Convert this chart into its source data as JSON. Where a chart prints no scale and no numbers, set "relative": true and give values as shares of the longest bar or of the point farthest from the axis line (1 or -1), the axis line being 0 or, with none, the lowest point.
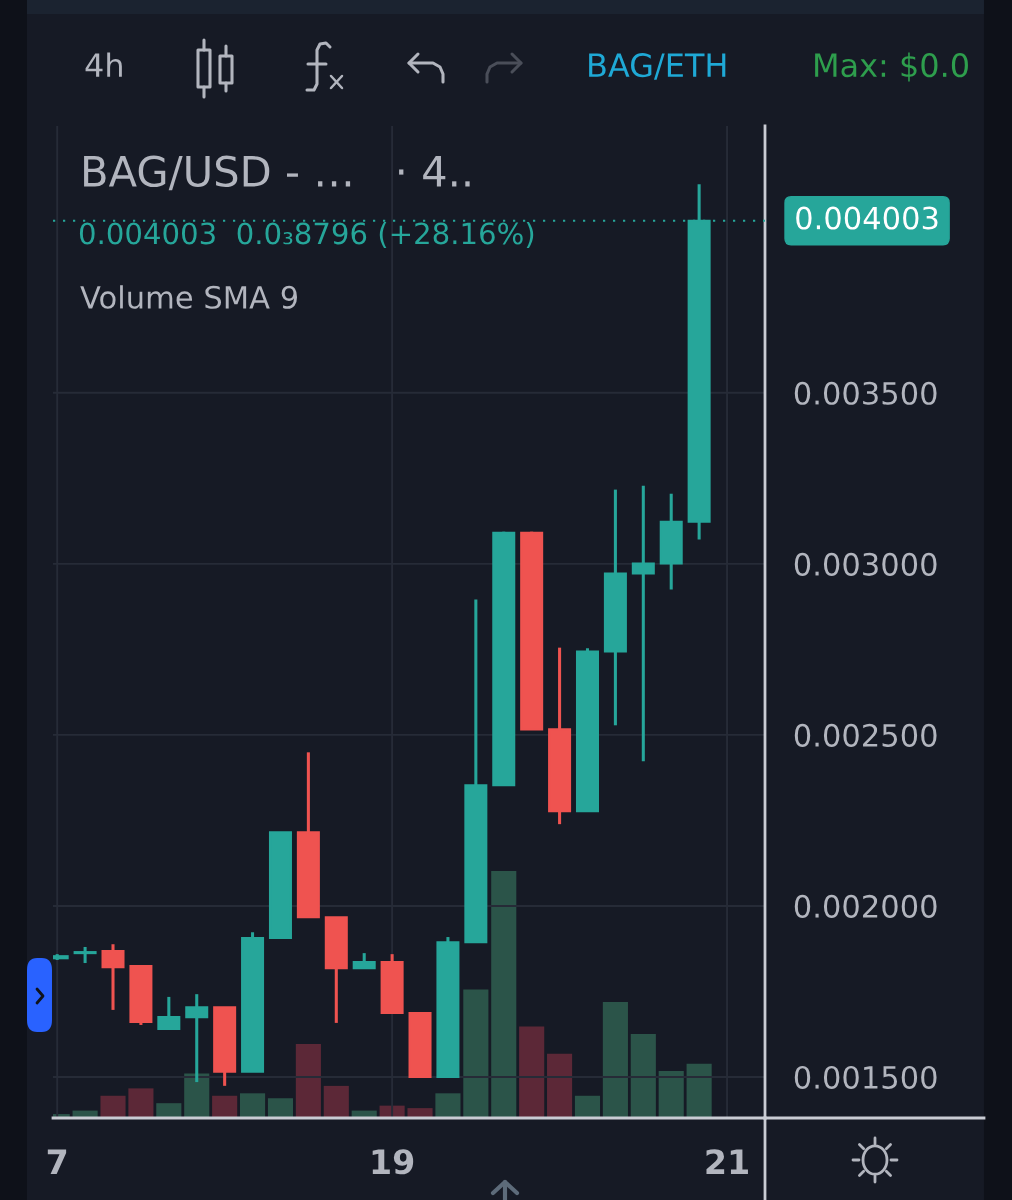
{
  "chart_data": [
    {
      "type": "candlestick",
      "title": "BAG/USD - …   · 4..",
      "subtitle": "0.004003  0.0₃8796 (+28.16%)",
      "categories": [
        "7",
        null,
        null,
        null,
        null,
        null,
        null,
        null,
        null,
        null,
        null,
        null,
        "19",
        null,
        null,
        null,
        null,
        null,
        null,
        null,
        null,
        null,
        null,
        null,
        "21"
      ],
      "ohlc": [
        [
          0.001847,
          0.001859,
          0.001842,
          0.001853
        ],
        [
          0.001862,
          0.00188,
          0.001833,
          0.001865
        ],
        [
          0.001868,
          0.001888,
          0.001696,
          0.001821
        ],
        [
          0.001824,
          0.001824,
          0.001652,
          0.001661
        ],
        [
          0.00164,
          0.001734,
          0.00164,
          0.001675
        ],
        [
          0.001675,
          0.001742,
          0.001485,
          0.001704
        ],
        [
          0.001704,
          0.001704,
          0.001474,
          0.001515
        ],
        [
          0.001515,
          0.001923,
          0.001515,
          0.001906
        ],
        [
          0.001906,
          0.002215,
          0.001906,
          0.002215
        ],
        [
          0.002215,
          0.002449,
          0.001967,
          0.001967
        ],
        [
          0.001967,
          0.001967,
          0.001658,
          0.001818
        ],
        [
          0.001818,
          0.001862,
          0.001818,
          0.001836
        ],
        [
          0.001836,
          0.001859,
          0.001687,
          0.001687
        ],
        [
          0.001687,
          0.001687,
          0.0015,
          0.0015
        ],
        [
          0.0015,
          0.001909,
          0.0015,
          0.001894
        ],
        [
          0.001894,
          0.002896,
          0.001894,
          0.002353
        ],
        [
          0.002353,
          0.003094,
          0.002353,
          0.003091
        ],
        [
          0.003091,
          0.003094,
          0.002516,
          0.002516
        ],
        [
          0.002516,
          0.002755,
          0.002239,
          0.002277
        ],
        [
          0.002277,
          0.002753,
          0.002277,
          0.002744
        ],
        [
          0.002744,
          0.003217,
          0.002528,
          0.002972
        ],
        [
          0.002972,
          0.003228,
          0.002423,
          0.003001
        ],
        [
          0.003001,
          0.003205,
          0.002925,
          0.003123
        ],
        [
          0.003123,
          0.00411,
          0.003071,
          0.004003
        ],
        null
      ],
      "colors": [
        "#26a69a",
        "#26a69a",
        "#ef5350",
        "#ef5350",
        "#26a69a",
        "#26a69a",
        "#ef5350",
        "#26a69a",
        "#26a69a",
        "#ef5350",
        "#ef5350",
        "#26a69a",
        "#ef5350",
        "#ef5350",
        "#26a69a",
        "#26a69a",
        "#26a69a",
        "#ef5350",
        "#ef5350",
        "#26a69a",
        "#26a69a",
        "#26a69a",
        "#26a69a",
        "#26a69a",
        null
      ],
      "ylim": [
        0.00138,
        0.00428
      ],
      "yticks": [
        {
          "value": 0.0015,
          "label": "0.001500"
        },
        {
          "value": 0.002,
          "label": "0.002000"
        },
        {
          "value": 0.0025,
          "label": "0.002500"
        },
        {
          "value": 0.003,
          "label": "0.003000"
        },
        {
          "value": 0.0035,
          "label": "0.003500"
        }
      ],
      "grid": true,
      "ref_lines": [
        {
          "axis": "y",
          "value": 0.004003,
          "label": "0.004003",
          "color": "#26a69a",
          "line_style": "dotted"
        }
      ],
      "annotations": [
        "4h",
        "BAG/ETH",
        "Max: $0.0"
      ]
    },
    {
      "type": "bar",
      "relative": true,
      "categories": [
        "7",
        null,
        null,
        null,
        null,
        null,
        null,
        null,
        null,
        null,
        null,
        null,
        "19",
        null,
        null,
        null,
        null,
        null,
        null,
        null,
        null,
        null,
        null,
        null,
        "21"
      ],
      "values": [
        0.016,
        0.03,
        0.09,
        0.12,
        0.06,
        0.18,
        0.09,
        0.1,
        0.08,
        0.3,
        0.13,
        0.03,
        0.05,
        0.04,
        0.1,
        0.52,
        1,
        0.37,
        0.26,
        0.09,
        0.47,
        0.34,
        0.19,
        0.22,
        null
      ],
      "colors": [
        "#2b5449",
        "#2b5449",
        "#5c2837",
        "#5c2837",
        "#2b5449",
        "#2b5449",
        "#5c2837",
        "#2b5449",
        "#2b5449",
        "#5c2837",
        "#5c2837",
        "#2b5449",
        "#5c2837",
        "#5c2837",
        "#2b5449",
        "#2b5449",
        "#2b5449",
        "#5c2837",
        "#5c2837",
        "#2b5449",
        "#2b5449",
        "#2b5449",
        "#2b5449",
        "#2b5449",
        null
      ],
      "tick_labels": false,
      "annotations": [
        "Volume SMA 9"
      ]
    }
  ]
}
